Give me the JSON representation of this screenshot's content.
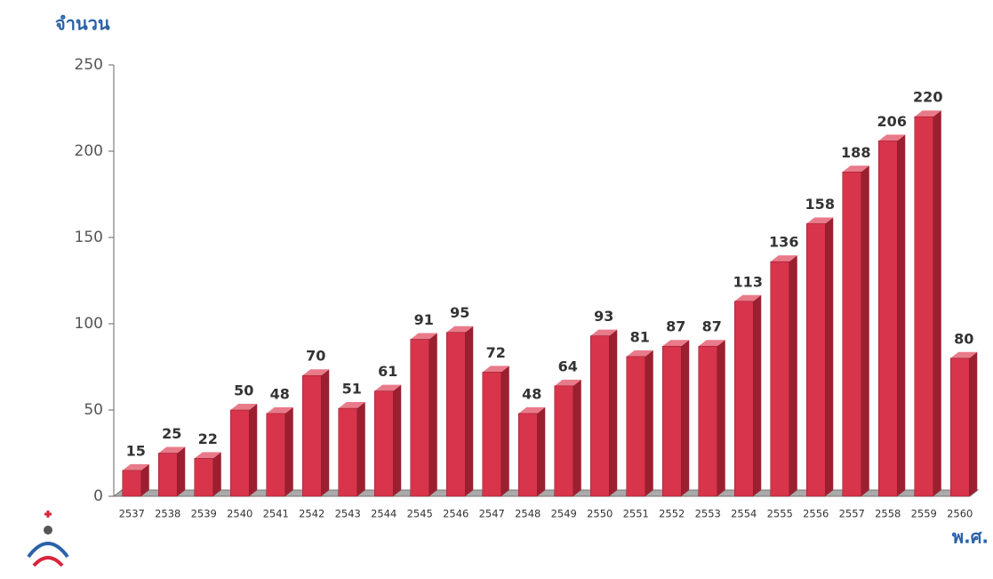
{
  "chart_data": {
    "type": "bar3d",
    "y_label": "จำนวน",
    "x_label": "พ.ศ.",
    "categories": [
      "2537",
      "2538",
      "2539",
      "2540",
      "2541",
      "2542",
      "2543",
      "2544",
      "2545",
      "2546",
      "2547",
      "2548",
      "2549",
      "2550",
      "2551",
      "2552",
      "2553",
      "2554",
      "2555",
      "2556",
      "2557",
      "2558",
      "2559",
      "2560"
    ],
    "values": [
      15,
      25,
      22,
      50,
      48,
      70,
      51,
      61,
      91,
      95,
      72,
      48,
      64,
      93,
      81,
      87,
      87,
      113,
      136,
      158,
      188,
      206,
      220,
      80
    ],
    "color": "#d8344c",
    "ylim": [
      0,
      250
    ],
    "yticks": [
      0,
      50,
      100,
      150,
      200,
      250
    ]
  }
}
